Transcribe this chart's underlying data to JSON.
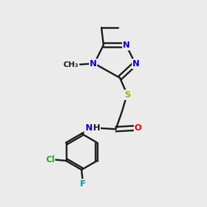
{
  "background_color": "#ebebeb",
  "bond_color": "#1a1a1a",
  "atom_colors": {
    "N": "#0000ee",
    "O": "#ee0000",
    "S": "#aaaa00",
    "Cl": "#22aa22",
    "F": "#009999",
    "C": "#1a1a1a",
    "H": "#1a1a1a"
  },
  "figsize": [
    3.0,
    3.0
  ],
  "dpi": 100
}
